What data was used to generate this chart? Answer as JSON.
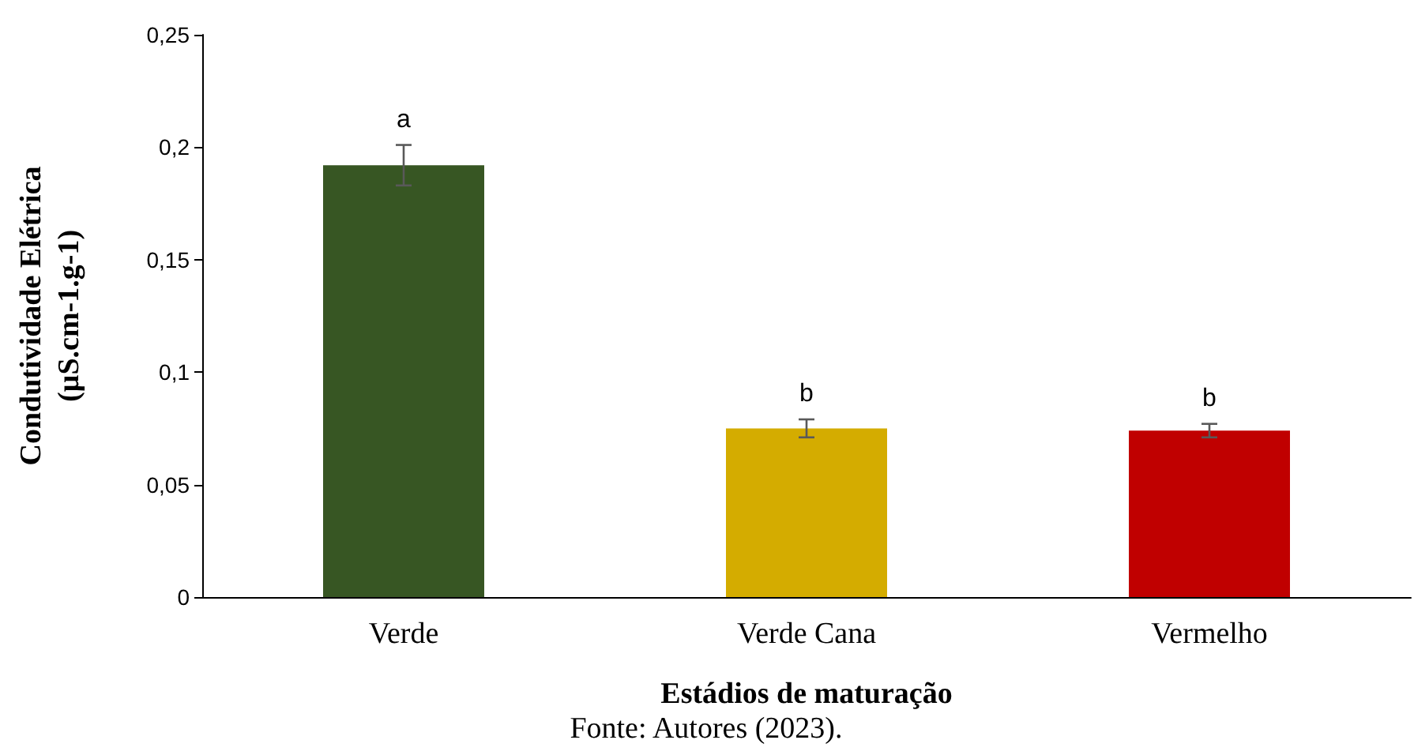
{
  "chart_data": {
    "type": "bar",
    "xlabel": "Estádios de maturação",
    "ylabel": "Condutividade Elétrica\n(µS.cm-1.g-1)",
    "categories": [
      "Verde",
      "Verde Cana",
      "Vermelho"
    ],
    "values": [
      0.192,
      0.075,
      0.074
    ],
    "colors": [
      "#375623",
      "#d4ac00",
      "#c00000"
    ],
    "errors": [
      0.009,
      0.004,
      0.003
    ],
    "ylim": [
      0,
      0.25
    ],
    "yticks": [
      {
        "value": 0,
        "label": "0"
      },
      {
        "value": 0.05,
        "label": "0,05"
      },
      {
        "value": 0.1,
        "label": "0,1"
      },
      {
        "value": 0.15,
        "label": "0,15"
      },
      {
        "value": 0.2,
        "label": "0,2"
      },
      {
        "value": 0.25,
        "label": "0,25"
      }
    ],
    "grid": false,
    "annotations": [
      {
        "text": "a",
        "x": "Verde",
        "y": 0.201
      },
      {
        "text": "b",
        "x": "Verde Cana",
        "y": 0.079
      },
      {
        "text": "b",
        "x": "Vermelho",
        "y": 0.077
      },
      "Fonte: Autores (2023)."
    ]
  }
}
